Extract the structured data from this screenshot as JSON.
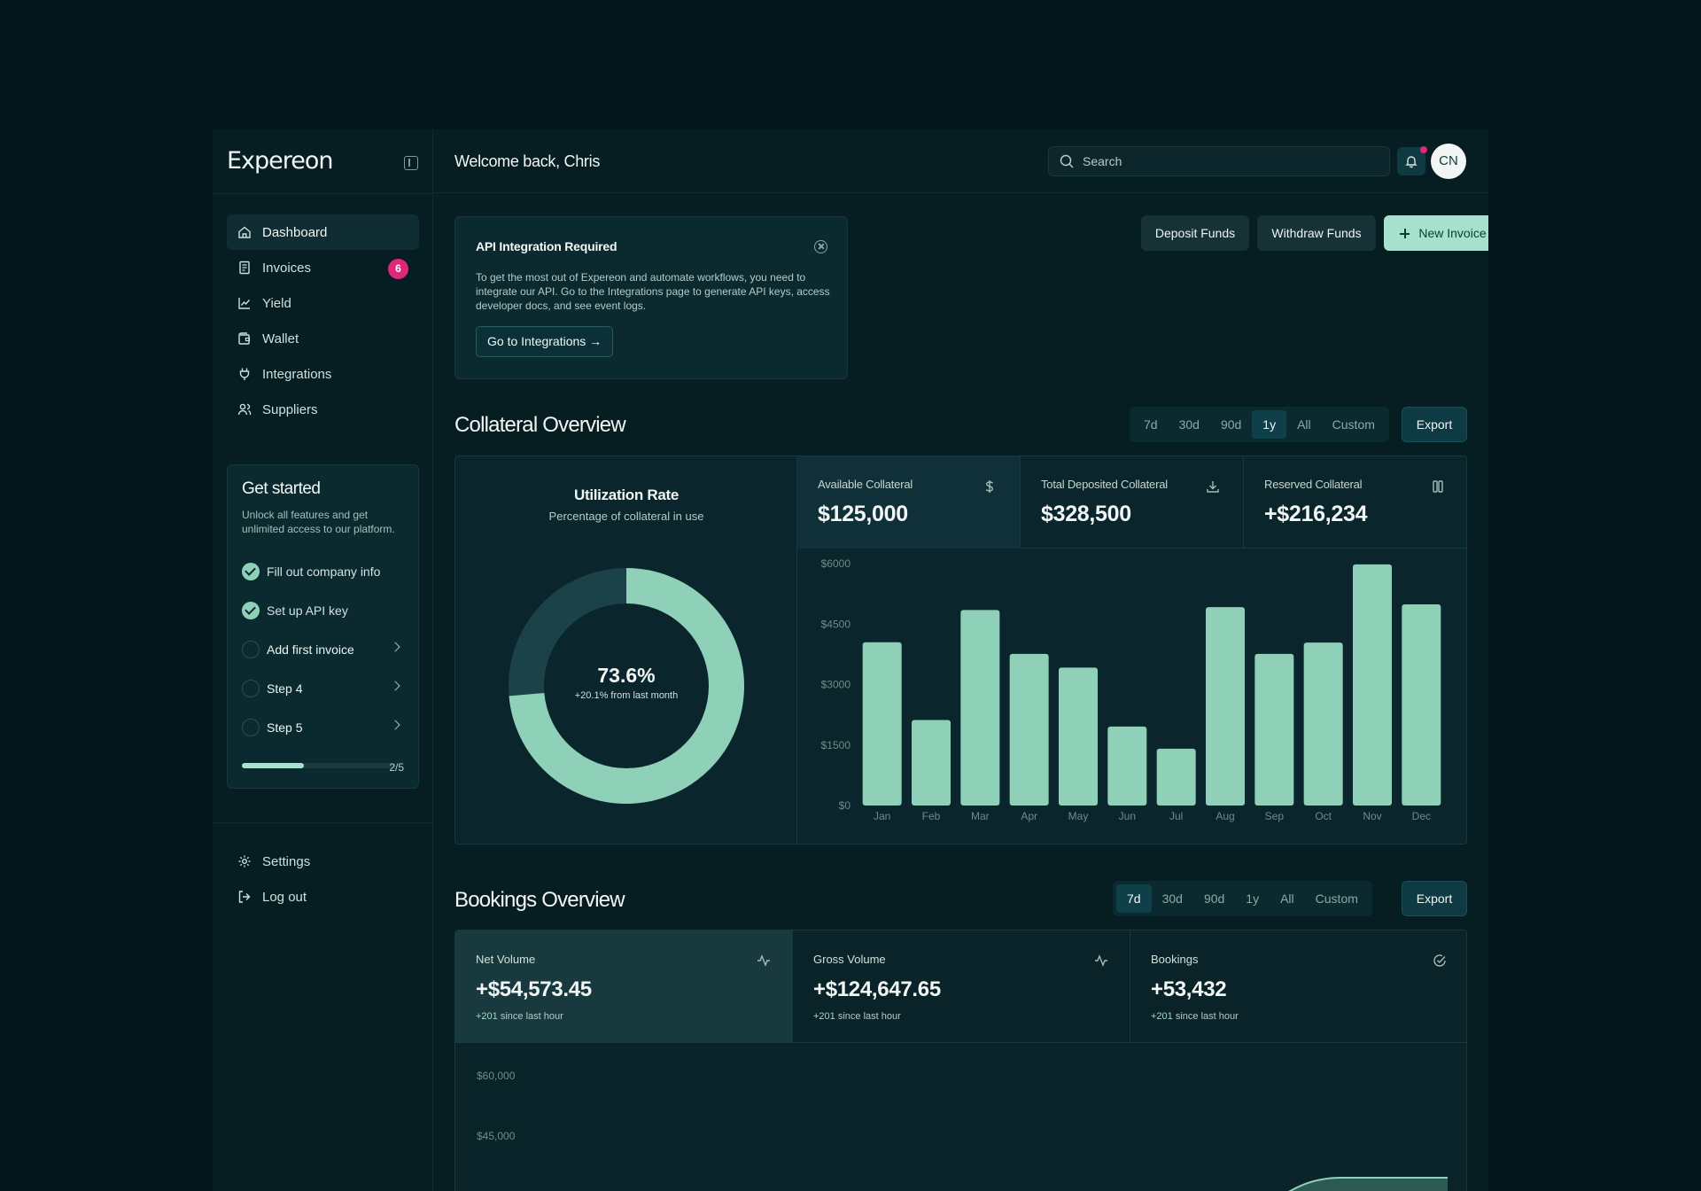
{
  "logo": "Expereon",
  "header": {
    "welcome": "Welcome back, Chris",
    "search_placeholder": "Search",
    "avatar_initials": "CN"
  },
  "sidebar": {
    "items": [
      {
        "label": "Dashboard",
        "icon": "home-icon",
        "active": true
      },
      {
        "label": "Invoices",
        "icon": "document-icon",
        "badge": "6"
      },
      {
        "label": "Yield",
        "icon": "chart-line-icon"
      },
      {
        "label": "Wallet",
        "icon": "wallet-icon"
      },
      {
        "label": "Integrations",
        "icon": "plug-icon"
      },
      {
        "label": "Suppliers",
        "icon": "users-icon"
      }
    ],
    "bottom_items": [
      {
        "label": "Settings",
        "icon": "gear-icon"
      },
      {
        "label": "Log out",
        "icon": "logout-icon"
      }
    ]
  },
  "get_started": {
    "title": "Get started",
    "subtitle": "Unlock all features and get unlimited access to our platform.",
    "steps": [
      {
        "label": "Fill out company info",
        "done": true
      },
      {
        "label": "Set up API key",
        "done": true
      },
      {
        "label": "Add first invoice",
        "done": false
      },
      {
        "label": "Step 4",
        "done": false
      },
      {
        "label": "Step 5",
        "done": false
      }
    ],
    "progress": 0.4,
    "progress_label": "2/5"
  },
  "alert": {
    "title": "API Integration Required",
    "body": "To get the most out of Expereon and automate workflows, you need to integrate our API. Go to the Integrations page to generate API keys, access developer docs, and see event logs.",
    "button": "Go to Integrations →"
  },
  "actions": {
    "deposit": "Deposit Funds",
    "withdraw": "Withdraw Funds",
    "new_invoice": "New Invoice"
  },
  "collateral": {
    "title": "Collateral Overview",
    "ranges": [
      "7d",
      "30d",
      "90d",
      "1y",
      "All",
      "Custom"
    ],
    "active_range": "1y",
    "export": "Export",
    "utilization": {
      "title": "Utilization Rate",
      "subtitle": "Percentage of collateral in use",
      "value": "73.6%",
      "delta": "+20.1% from last month",
      "fraction": 0.736
    },
    "stats": [
      {
        "label": "Available Collateral",
        "value": "$125,000",
        "icon": "dollar-icon"
      },
      {
        "label": "Total Deposited Collateral",
        "value": "$328,500",
        "icon": "download-icon"
      },
      {
        "label": "Reserved Collateral",
        "value": "+$216,234",
        "icon": "pause-icon"
      }
    ]
  },
  "bookings": {
    "title": "Bookings Overview",
    "ranges": [
      "7d",
      "30d",
      "90d",
      "1y",
      "All",
      "Custom"
    ],
    "active_range": "7d",
    "export": "Export",
    "stats": [
      {
        "label": "Net Volume",
        "value": "+$54,573.45",
        "delta": "+201",
        "delta_text": " since last hour",
        "icon": "activity-icon"
      },
      {
        "label": "Gross Volume",
        "value": "+$124,647.65",
        "delta": "+201",
        "delta_text": " since last hour",
        "icon": "activity-icon"
      },
      {
        "label": "Bookings",
        "value": "+53,432",
        "delta": "+201",
        "delta_text": " since last hour",
        "icon": "check-circle-icon"
      }
    ]
  },
  "colors": {
    "accent": "#8fd1b8",
    "badge": "#e0287b",
    "background": "#061d22"
  },
  "chart_data": [
    {
      "type": "bar",
      "categories": [
        "Jan",
        "Feb",
        "Mar",
        "Apr",
        "May",
        "Jun",
        "Jul",
        "Aug",
        "Sep",
        "Oct",
        "Nov",
        "Dec"
      ],
      "values": [
        4050,
        2120,
        4850,
        3760,
        3420,
        1960,
        1410,
        4920,
        3760,
        4040,
        5980,
        4990
      ],
      "yticks": [
        "$0",
        "$1500",
        "$3000",
        "$4500",
        "$6000"
      ],
      "ylim": [
        0,
        6000
      ],
      "grid": false
    },
    {
      "type": "area",
      "yticks": [
        "$60,000",
        "$45,000"
      ],
      "grid": false
    }
  ]
}
